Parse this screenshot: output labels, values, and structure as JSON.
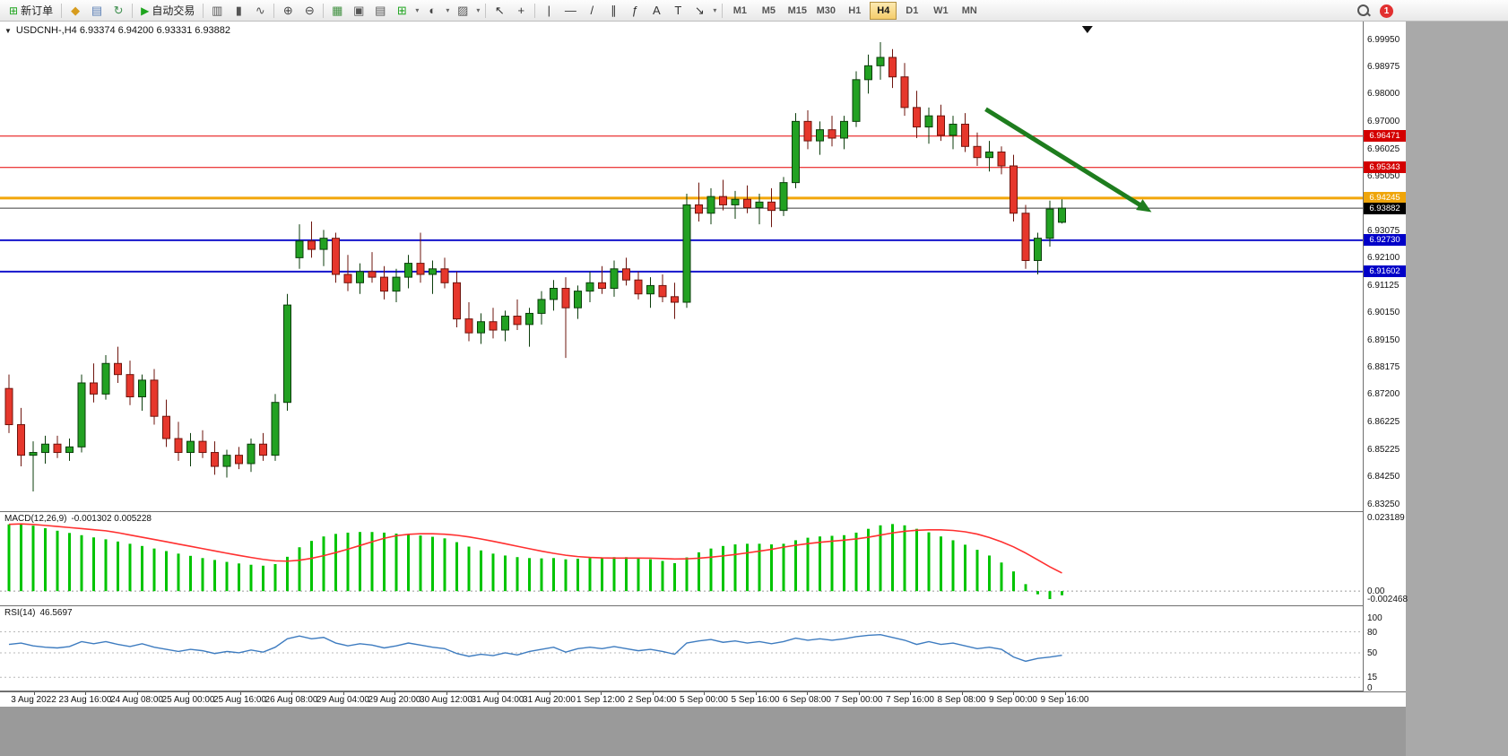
{
  "toolbar": {
    "items": [
      {
        "type": "labeled",
        "name": "new-order-button",
        "glyph": "⊞",
        "glyph_color": "#1fa51f",
        "label": "新订单"
      },
      {
        "type": "sep"
      },
      {
        "type": "icon",
        "name": "charts-profile-icon",
        "glyph": "◆",
        "color": "#d79c1e"
      },
      {
        "type": "icon",
        "name": "market-watch-icon",
        "glyph": "▤",
        "color": "#5b7fb5"
      },
      {
        "type": "icon",
        "name": "refresh-icon",
        "glyph": "↻",
        "color": "#3f8f4f"
      },
      {
        "type": "sep"
      },
      {
        "type": "labeled",
        "name": "auto-trading-button",
        "glyph": "▶",
        "glyph_color": "#1fa51f",
        "label": "自动交易"
      },
      {
        "type": "sep"
      },
      {
        "type": "icon",
        "name": "bar-chart-icon",
        "glyph": "▥",
        "color": "#555555"
      },
      {
        "type": "icon",
        "name": "candlestick-chart-icon",
        "glyph": "▮",
        "color": "#555555"
      },
      {
        "type": "icon",
        "name": "line-chart-icon",
        "glyph": "∿",
        "color": "#555555"
      },
      {
        "type": "sep"
      },
      {
        "type": "icon",
        "name": "zoom-in-icon",
        "glyph": "⊕",
        "color": "#444444"
      },
      {
        "type": "icon",
        "name": "zoom-out-icon",
        "glyph": "⊖",
        "color": "#444444"
      },
      {
        "type": "sep"
      },
      {
        "type": "icon",
        "name": "tile-windows-icon",
        "glyph": "▦",
        "color": "#3f8f3f"
      },
      {
        "type": "icon",
        "name": "auto-scroll-icon",
        "glyph": "▣",
        "color": "#555555"
      },
      {
        "type": "icon",
        "name": "chart-shift-icon",
        "glyph": "▤",
        "color": "#555555"
      },
      {
        "type": "icon",
        "name": "new-chart-icon",
        "glyph": "⊞",
        "color": "#1fa51f"
      },
      {
        "type": "caret",
        "name": "new-chart-caret-icon"
      },
      {
        "type": "icon",
        "name": "periods-icon",
        "glyph": "◐",
        "color": "#444444"
      },
      {
        "type": "caret",
        "name": "periods-caret-icon"
      },
      {
        "type": "icon",
        "name": "templates-icon",
        "glyph": "▨",
        "color": "#555555"
      },
      {
        "type": "caret",
        "name": "templates-caret-icon"
      },
      {
        "type": "sep"
      },
      {
        "type": "icon",
        "name": "cursor-icon",
        "glyph": "↖",
        "color": "#333333"
      },
      {
        "type": "icon",
        "name": "crosshair-icon",
        "glyph": "+",
        "color": "#333333"
      },
      {
        "type": "sep"
      },
      {
        "type": "icon",
        "name": "vertical-line-icon",
        "glyph": "|",
        "color": "#333333"
      },
      {
        "type": "icon",
        "name": "horizontal-line-icon",
        "glyph": "—",
        "color": "#333333"
      },
      {
        "type": "icon",
        "name": "trendline-icon",
        "glyph": "/",
        "color": "#333333"
      },
      {
        "type": "icon",
        "name": "equidistant-channel-icon",
        "glyph": "∥",
        "color": "#333333"
      },
      {
        "type": "icon",
        "name": "fibonacci-icon",
        "glyph": "ƒ",
        "color": "#333333"
      },
      {
        "type": "icon",
        "name": "text-icon",
        "glyph": "A",
        "color": "#333333"
      },
      {
        "type": "icon",
        "name": "text-label-icon",
        "glyph": "T",
        "color": "#333333"
      },
      {
        "type": "icon",
        "name": "arrows-icon",
        "glyph": "↘",
        "color": "#333333"
      },
      {
        "type": "caret",
        "name": "arrows-caret-icon"
      },
      {
        "type": "sep"
      }
    ],
    "timeframes": [
      "M1",
      "M5",
      "M15",
      "M30",
      "H1",
      "H4",
      "D1",
      "W1",
      "MN"
    ],
    "active_timeframe": "H4",
    "notification_count": "1"
  },
  "chart": {
    "collapse_icon": "▼",
    "header": "USDCNH-,H4 6.93374 6.94200 6.93331 6.93882"
  },
  "macd_header": {
    "label": "MACD(12,26,9)",
    "values": "-0.001302 0.005228"
  },
  "rsi_header": {
    "label": "RSI(14)",
    "value": "46.5697"
  },
  "chart_data": {
    "type": "candlestick",
    "symbol": "USDCNH-",
    "timeframe": "H4",
    "current_bar": {
      "open": 6.93374,
      "high": 6.942,
      "low": 6.93331,
      "close": 6.93882
    },
    "price_ylim": [
      6.8299,
      7.0059
    ],
    "bar_start_x": 10,
    "bar_step_x": 13.5,
    "candles_ohlc": [
      [
        6.874,
        6.879,
        6.858,
        6.861
      ],
      [
        6.861,
        6.867,
        6.846,
        6.85
      ],
      [
        6.85,
        6.855,
        6.837,
        6.851
      ],
      [
        6.851,
        6.857,
        6.847,
        6.854
      ],
      [
        6.854,
        6.857,
        6.849,
        6.851
      ],
      [
        6.851,
        6.856,
        6.848,
        6.853
      ],
      [
        6.853,
        6.879,
        6.851,
        6.876
      ],
      [
        6.876,
        6.883,
        6.869,
        6.872
      ],
      [
        6.872,
        6.886,
        6.87,
        6.883
      ],
      [
        6.883,
        6.889,
        6.876,
        6.879
      ],
      [
        6.879,
        6.884,
        6.868,
        6.871
      ],
      [
        6.871,
        6.879,
        6.866,
        6.877
      ],
      [
        6.877,
        6.881,
        6.861,
        6.864
      ],
      [
        6.864,
        6.87,
        6.853,
        6.856
      ],
      [
        6.856,
        6.862,
        6.848,
        6.851
      ],
      [
        6.851,
        6.858,
        6.846,
        6.855
      ],
      [
        6.855,
        6.859,
        6.849,
        6.851
      ],
      [
        6.851,
        6.855,
        6.843,
        6.846
      ],
      [
        6.846,
        6.852,
        6.842,
        6.85
      ],
      [
        6.85,
        6.853,
        6.845,
        6.847
      ],
      [
        6.847,
        6.856,
        6.844,
        6.854
      ],
      [
        6.854,
        6.858,
        6.848,
        6.85
      ],
      [
        6.85,
        6.872,
        6.848,
        6.869
      ],
      [
        6.869,
        6.908,
        6.866,
        6.904
      ],
      [
        6.921,
        6.933,
        6.917,
        6.927
      ],
      [
        6.927,
        6.934,
        6.921,
        6.924
      ],
      [
        6.924,
        6.931,
        6.918,
        6.928
      ],
      [
        6.928,
        6.93,
        6.912,
        6.915
      ],
      [
        6.915,
        6.922,
        6.909,
        6.912
      ],
      [
        6.912,
        6.919,
        6.908,
        6.916
      ],
      [
        6.916,
        6.923,
        6.912,
        6.914
      ],
      [
        6.914,
        6.918,
        6.906,
        6.909
      ],
      [
        6.909,
        6.917,
        6.905,
        6.914
      ],
      [
        6.914,
        6.922,
        6.91,
        6.919
      ],
      [
        6.919,
        6.93,
        6.912,
        6.915
      ],
      [
        6.915,
        6.92,
        6.908,
        6.917
      ],
      [
        6.917,
        6.921,
        6.91,
        6.912
      ],
      [
        6.912,
        6.916,
        6.896,
        6.899
      ],
      [
        6.899,
        6.905,
        6.891,
        6.894
      ],
      [
        6.894,
        6.901,
        6.89,
        6.898
      ],
      [
        6.898,
        6.903,
        6.892,
        6.895
      ],
      [
        6.895,
        6.902,
        6.891,
        6.9
      ],
      [
        6.9,
        6.906,
        6.895,
        6.897
      ],
      [
        6.897,
        6.903,
        6.889,
        6.901
      ],
      [
        6.901,
        6.909,
        6.897,
        6.906
      ],
      [
        6.906,
        6.913,
        6.902,
        6.91
      ],
      [
        6.91,
        6.914,
        6.885,
        6.903
      ],
      [
        6.903,
        6.911,
        6.899,
        6.909
      ],
      [
        6.909,
        6.916,
        6.905,
        6.912
      ],
      [
        6.912,
        6.918,
        6.908,
        6.91
      ],
      [
        6.91,
        6.92,
        6.907,
        6.917
      ],
      [
        6.917,
        6.921,
        6.911,
        6.913
      ],
      [
        6.913,
        6.916,
        6.906,
        6.908
      ],
      [
        6.908,
        6.914,
        6.903,
        6.911
      ],
      [
        6.911,
        6.915,
        6.905,
        6.907
      ],
      [
        6.907,
        6.912,
        6.899,
        6.905
      ],
      [
        6.905,
        6.944,
        6.903,
        6.94
      ],
      [
        6.94,
        6.948,
        6.934,
        6.937
      ],
      [
        6.937,
        6.946,
        6.933,
        6.943
      ],
      [
        6.943,
        6.949,
        6.938,
        6.94
      ],
      [
        6.94,
        6.945,
        6.935,
        6.942
      ],
      [
        6.942,
        6.947,
        6.937,
        6.939
      ],
      [
        6.939,
        6.944,
        6.933,
        6.941
      ],
      [
        6.941,
        6.946,
        6.932,
        6.938
      ],
      [
        6.938,
        6.95,
        6.936,
        6.948
      ],
      [
        6.948,
        6.973,
        6.946,
        6.97
      ],
      [
        6.97,
        6.974,
        6.96,
        6.963
      ],
      [
        6.963,
        6.97,
        6.958,
        6.967
      ],
      [
        6.967,
        6.972,
        6.961,
        6.964
      ],
      [
        6.964,
        6.972,
        6.96,
        6.97
      ],
      [
        6.97,
        6.988,
        6.968,
        6.985
      ],
      [
        6.985,
        6.994,
        6.98,
        6.99
      ],
      [
        6.99,
        6.9985,
        6.985,
        6.993
      ],
      [
        6.993,
        6.996,
        6.982,
        6.986
      ],
      [
        6.986,
        6.991,
        6.972,
        6.975
      ],
      [
        6.975,
        6.981,
        6.964,
        6.968
      ],
      [
        6.968,
        6.975,
        6.962,
        6.972
      ],
      [
        6.972,
        6.976,
        6.963,
        6.965
      ],
      [
        6.965,
        6.972,
        6.96,
        6.969
      ],
      [
        6.969,
        6.973,
        6.959,
        6.961
      ],
      [
        6.961,
        6.966,
        6.954,
        6.957
      ],
      [
        6.957,
        6.963,
        6.952,
        6.959
      ],
      [
        6.959,
        6.961,
        6.951,
        6.954
      ],
      [
        6.954,
        6.958,
        6.934,
        6.937
      ],
      [
        6.937,
        6.94,
        6.917,
        6.92
      ],
      [
        6.92,
        6.93,
        6.915,
        6.928
      ],
      [
        6.928,
        6.9415,
        6.925,
        6.9385
      ],
      [
        6.93374,
        6.942,
        6.93331,
        6.93882
      ]
    ],
    "up_color": "#22a122",
    "down_color": "#e6372c",
    "hlines": [
      {
        "price": 6.96471,
        "label": "6.96471",
        "color": "#e60000",
        "width": 1,
        "box": "#d40000"
      },
      {
        "price": 6.95343,
        "label": "6.95343",
        "color": "#e60000",
        "width": 1,
        "box": "#d40000"
      },
      {
        "price": 6.94245,
        "label": "6.94245",
        "color": "#f2a60a",
        "width": 3,
        "box": "#efa50a"
      },
      {
        "price": 6.93882,
        "label": "6.93882",
        "color": "#3c3c3c",
        "width": 1,
        "box": "#000000"
      },
      {
        "price": 6.9273,
        "label": "6.92730",
        "color": "#1414cc",
        "width": 2,
        "box": "#0000c8"
      },
      {
        "price": 6.91602,
        "label": "6.91602",
        "color": "#1414cc",
        "width": 2,
        "box": "#0000c8"
      }
    ],
    "price_axis_labels": [
      "6.99950",
      "6.98975",
      "6.98000",
      "6.97000",
      "6.96025",
      "6.95050",
      "6.93075",
      "6.92100",
      "6.91125",
      "6.90150",
      "6.89150",
      "6.88175",
      "6.87200",
      "6.86225",
      "6.85225",
      "6.84250",
      "6.83250"
    ],
    "time_labels": [
      "3 Aug 2022",
      "23 Aug 16:00",
      "24 Aug 08:00",
      "25 Aug 00:00",
      "25 Aug 16:00",
      "26 Aug 08:00",
      "29 Aug 04:00",
      "29 Aug 20:00",
      "30 Aug 12:00",
      "31 Aug 04:00",
      "31 Aug 20:00",
      "1 Sep 12:00",
      "2 Sep 04:00",
      "5 Sep 00:00",
      "5 Sep 16:00",
      "6 Sep 08:00",
      "7 Sep 00:00",
      "7 Sep 16:00",
      "8 Sep 08:00",
      "9 Sep 00:00",
      "9 Sep 16:00"
    ],
    "time_label_start_x": 37.5,
    "time_label_step_x": 57.5,
    "trend_arrow": {
      "from_bar": 80.7,
      "from_price": 6.9744,
      "to_bar": 94.4,
      "to_price": 6.9374,
      "color": "#1e7d1e",
      "width": 5
    },
    "shift_marker_bar": 89.1,
    "macd": {
      "params": "12,26,9",
      "last_main": -0.001302,
      "last_signal": 0.005228,
      "ylim": [
        -0.00447,
        0.02487
      ],
      "axis_labels": [
        {
          "text": "0.023189",
          "value": 0.023189
        },
        {
          "text": "0.00",
          "value": 0.0
        },
        {
          "text": "-0.002468",
          "value": -0.002468
        }
      ],
      "hist_color": "#00c400",
      "signal_color": "#ff3030",
      "signal_period": 9,
      "histogram": [
        0.021,
        0.0213,
        0.0206,
        0.0198,
        0.019,
        0.0183,
        0.0176,
        0.0169,
        0.0163,
        0.0156,
        0.0149,
        0.0142,
        0.0134,
        0.0126,
        0.0118,
        0.0111,
        0.0104,
        0.0098,
        0.0092,
        0.0087,
        0.0083,
        0.008,
        0.0085,
        0.0108,
        0.0138,
        0.0158,
        0.0172,
        0.018,
        0.0184,
        0.0186,
        0.0186,
        0.0184,
        0.0181,
        0.0178,
        0.0175,
        0.0171,
        0.0166,
        0.0154,
        0.014,
        0.0128,
        0.0118,
        0.0112,
        0.0107,
        0.0104,
        0.0103,
        0.0104,
        0.01,
        0.0102,
        0.0104,
        0.0105,
        0.0107,
        0.0107,
        0.0103,
        0.01,
        0.0095,
        0.0088,
        0.0106,
        0.0122,
        0.0134,
        0.0142,
        0.0147,
        0.0149,
        0.0149,
        0.0147,
        0.0149,
        0.016,
        0.0168,
        0.0172,
        0.0174,
        0.0176,
        0.0184,
        0.0196,
        0.0207,
        0.0211,
        0.0207,
        0.0196,
        0.0185,
        0.0172,
        0.016,
        0.0146,
        0.013,
        0.0112,
        0.009,
        0.0062,
        0.0022,
        -0.001,
        -0.0025,
        -0.0013
      ]
    },
    "rsi": {
      "period": 14,
      "last": 46.5697,
      "ylim": [
        -3.8,
        116.5
      ],
      "levels": [
        {
          "text": "100",
          "value": 100
        },
        {
          "text": "80",
          "value": 80
        },
        {
          "text": "50",
          "value": 50
        },
        {
          "text": "15",
          "value": 15
        },
        {
          "text": "0",
          "value": 0
        }
      ],
      "line_color": "#3e7cc0",
      "values": [
        62,
        64,
        60,
        58,
        57,
        59,
        66,
        63,
        66,
        62,
        59,
        63,
        58,
        55,
        52,
        55,
        53,
        49,
        52,
        50,
        54,
        51,
        58,
        70,
        74,
        70,
        72,
        64,
        60,
        63,
        61,
        57,
        60,
        64,
        61,
        58,
        56,
        49,
        45,
        48,
        46,
        50,
        47,
        52,
        55,
        58,
        51,
        56,
        58,
        56,
        59,
        56,
        53,
        55,
        52,
        48,
        64,
        67,
        69,
        65,
        67,
        64,
        66,
        63,
        66,
        71,
        68,
        70,
        68,
        70,
        73,
        75,
        76,
        72,
        68,
        62,
        66,
        62,
        64,
        60,
        56,
        58,
        55,
        44,
        38,
        42,
        44,
        46.57
      ]
    }
  }
}
